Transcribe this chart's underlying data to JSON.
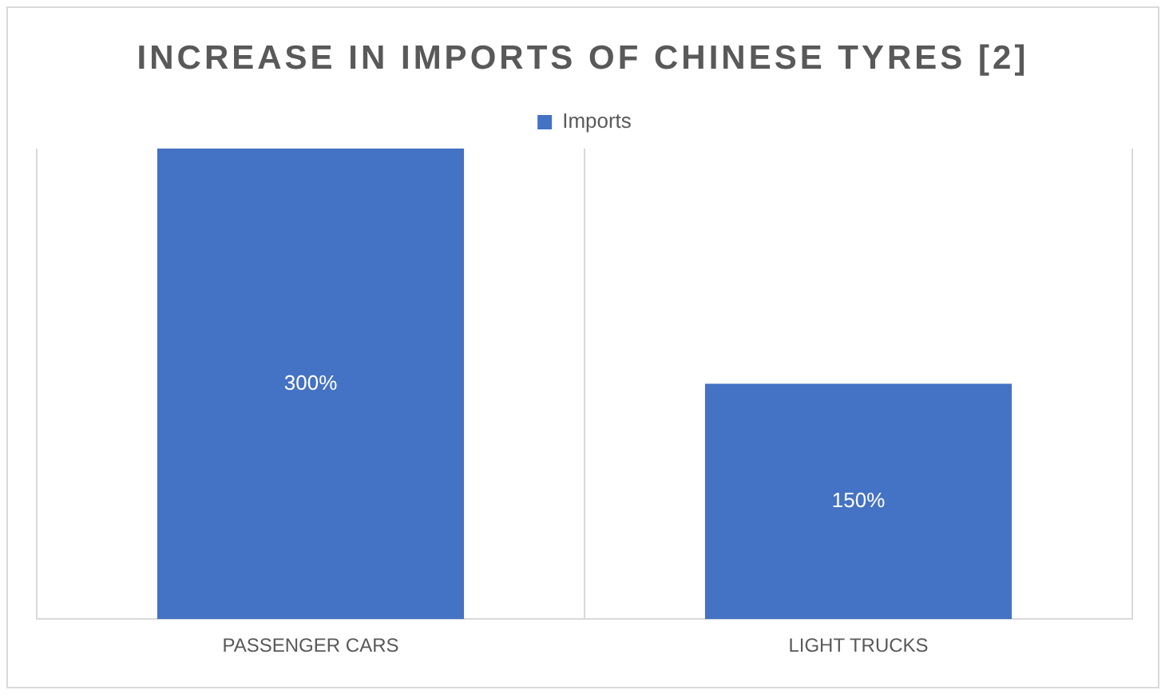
{
  "chart_data": {
    "type": "bar",
    "title": "INCREASE IN IMPORTS OF CHINESE TYRES [2]",
    "categories": [
      "PASSENGER CARS",
      "LIGHT TRUCKS"
    ],
    "series": [
      {
        "name": "Imports",
        "color": "#4472c4",
        "values": [
          300,
          150
        ],
        "value_labels": [
          "300%",
          "150%"
        ]
      }
    ],
    "legend": "top",
    "grid": "x",
    "tick_labels": "x"
  }
}
